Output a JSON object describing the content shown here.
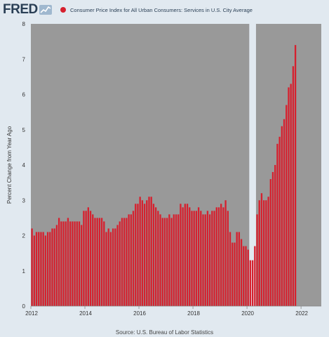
{
  "header": {
    "logo_text": "FRED",
    "logo_icon": "chart-line-icon"
  },
  "legend": {
    "label": "Consumer Price Index for All Urban Consumers: Services in U.S. City Average",
    "color": "#d6202e"
  },
  "footer": {
    "source": "Source: U.S. Bureau of Labor Statistics"
  },
  "colors": {
    "bar": "#d6202e",
    "plot_bg": "#999999",
    "recession": "#e1e9f0"
  },
  "chart_data": {
    "type": "bar",
    "title": "",
    "ylabel": "Percent Change from Year Ago",
    "xlabel": "",
    "ylim": [
      0,
      8
    ],
    "yticks": [
      0,
      1,
      2,
      3,
      4,
      5,
      6,
      7,
      8
    ],
    "xlim": [
      "2012-01",
      "2022-09"
    ],
    "xticks": [
      "2012",
      "2014",
      "2016",
      "2018",
      "2020",
      "2022"
    ],
    "recession": {
      "start": "2020-02",
      "end": "2020-04"
    },
    "grid": false,
    "legend": "top-left",
    "series": [
      {
        "name": "Consumer Price Index for All Urban Consumers: Services in U.S. City Average",
        "start": "2012-01",
        "frequency": "monthly",
        "values": [
          2.2,
          2.0,
          2.1,
          2.1,
          2.1,
          2.1,
          2.0,
          2.1,
          2.1,
          2.2,
          2.2,
          2.3,
          2.5,
          2.4,
          2.4,
          2.4,
          2.5,
          2.4,
          2.4,
          2.4,
          2.4,
          2.4,
          2.3,
          2.7,
          2.7,
          2.8,
          2.7,
          2.6,
          2.5,
          2.5,
          2.5,
          2.5,
          2.4,
          2.1,
          2.2,
          2.1,
          2.2,
          2.2,
          2.3,
          2.4,
          2.5,
          2.5,
          2.5,
          2.6,
          2.6,
          2.7,
          2.9,
          2.9,
          3.1,
          3.0,
          2.9,
          3.0,
          3.1,
          3.1,
          2.9,
          2.8,
          2.7,
          2.6,
          2.5,
          2.5,
          2.5,
          2.6,
          2.5,
          2.6,
          2.6,
          2.6,
          2.9,
          2.8,
          2.9,
          2.9,
          2.8,
          2.7,
          2.7,
          2.7,
          2.8,
          2.7,
          2.6,
          2.6,
          2.7,
          2.6,
          2.7,
          2.7,
          2.8,
          2.8,
          2.9,
          2.8,
          3.0,
          2.7,
          2.1,
          1.8,
          1.8,
          2.1,
          2.1,
          1.9,
          1.7,
          1.7,
          1.6,
          1.3,
          1.3,
          1.7,
          2.6,
          3.0,
          3.2,
          3.0,
          3.0,
          3.1,
          3.6,
          3.8,
          4.0,
          4.6,
          4.8,
          5.1,
          5.3,
          5.7,
          6.2,
          6.3,
          6.8,
          7.4
        ]
      }
    ]
  }
}
